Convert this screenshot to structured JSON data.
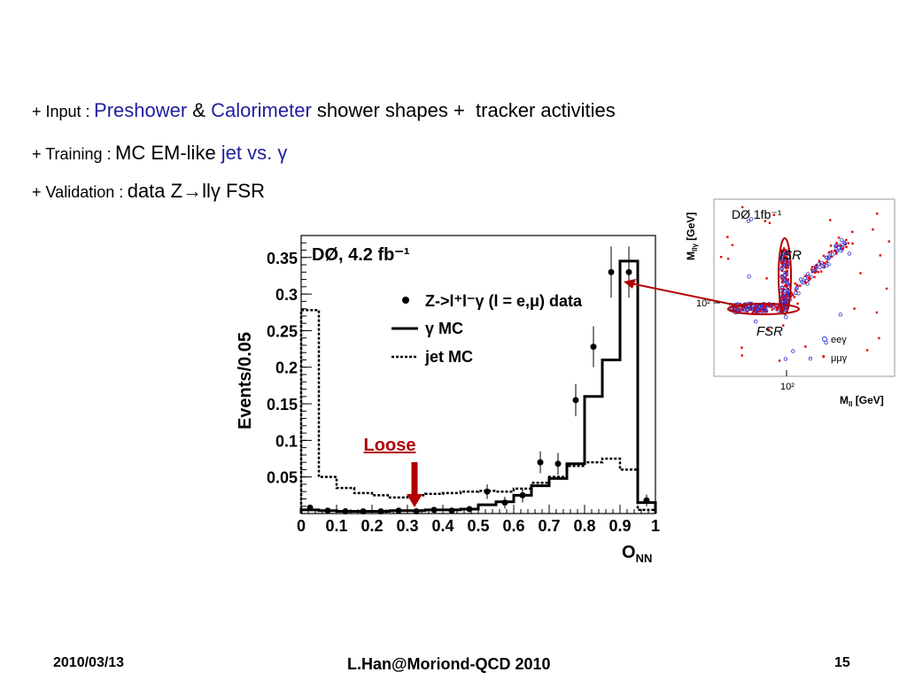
{
  "bullets": [
    {
      "prefix": "+ Input :",
      "parts": [
        {
          "text": "Preshower",
          "color": "blue"
        },
        {
          "text": " & ",
          "color": "black"
        },
        {
          "text": "Calorimeter",
          "color": "blue"
        },
        {
          "text": " shower shapes +  tracker activities",
          "color": "black"
        }
      ]
    },
    {
      "prefix": "+ Training :",
      "parts": [
        {
          "text": "MC EM-like ",
          "color": "black"
        },
        {
          "text": "jet vs. ",
          "color": "blue"
        },
        {
          "text": "γ",
          "color": "blue"
        }
      ]
    },
    {
      "prefix": "+ Validation :",
      "parts": [
        {
          "text": "data Z→llγ FSR",
          "color": "black"
        }
      ]
    }
  ],
  "footer": {
    "date": "2010/03/13",
    "author": "L.Han@Moriond-QCD 2010",
    "page": "15"
  },
  "colors": {
    "blue_text": "#1f1f9e",
    "arrow": "#b00000",
    "ee_marker": "#3333cc",
    "mumu_marker": "#e00000"
  },
  "chart_data": [
    {
      "type": "histogram",
      "title": "DØ, 4.2 fb⁻¹",
      "xlabel": "O_NN",
      "ylabel": "Events/0.05",
      "xlim": [
        0,
        1
      ],
      "ylim": [
        0,
        0.38
      ],
      "xticks": [
        "0",
        "0.1",
        "0.2",
        "0.3",
        "0.4",
        "0.5",
        "0.6",
        "0.7",
        "0.8",
        "0.9",
        "1"
      ],
      "yticks": [
        "0.05",
        "0.1",
        "0.15",
        "0.2",
        "0.25",
        "0.3",
        "0.35"
      ],
      "legend": {
        "placement": "top-right",
        "entries": [
          {
            "label": "Z->l⁺l⁻γ (l = e,μ) data",
            "style": "points"
          },
          {
            "label": "γ MC",
            "style": "solid"
          },
          {
            "label": "jet MC",
            "style": "dashed"
          }
        ]
      },
      "bin_edges": [
        0,
        0.05,
        0.1,
        0.15,
        0.2,
        0.25,
        0.3,
        0.35,
        0.4,
        0.45,
        0.5,
        0.55,
        0.6,
        0.65,
        0.7,
        0.75,
        0.8,
        0.85,
        0.9,
        0.95,
        1.0
      ],
      "series": [
        {
          "name": "γ MC",
          "style": "solid",
          "values": [
            0.005,
            0.004,
            0.003,
            0.003,
            0.003,
            0.004,
            0.004,
            0.005,
            0.005,
            0.006,
            0.012,
            0.016,
            0.025,
            0.038,
            0.048,
            0.068,
            0.16,
            0.21,
            0.345,
            0.015
          ]
        },
        {
          "name": "jet MC",
          "style": "dashed",
          "values": [
            0.278,
            0.05,
            0.035,
            0.028,
            0.025,
            0.022,
            0.025,
            0.027,
            0.028,
            0.03,
            0.031,
            0.03,
            0.034,
            0.042,
            0.05,
            0.065,
            0.07,
            0.075,
            0.06,
            0.005
          ]
        },
        {
          "name": "Z->l⁺l⁻γ (l = e,μ) data",
          "style": "points",
          "x": [
            0.025,
            0.075,
            0.125,
            0.175,
            0.225,
            0.275,
            0.325,
            0.375,
            0.425,
            0.475,
            0.525,
            0.575,
            0.625,
            0.675,
            0.725,
            0.775,
            0.825,
            0.875,
            0.925,
            0.975
          ],
          "values": [
            0.008,
            0.004,
            0.003,
            0.003,
            0.003,
            0.004,
            0.003,
            0.005,
            0.004,
            0.006,
            0.03,
            0.015,
            0.025,
            0.07,
            0.068,
            0.155,
            0.228,
            0.33,
            0.33,
            0.018
          ],
          "errors": [
            0.004,
            0.003,
            0.002,
            0.002,
            0.002,
            0.002,
            0.002,
            0.003,
            0.003,
            0.003,
            0.01,
            0.008,
            0.01,
            0.015,
            0.015,
            0.022,
            0.028,
            0.035,
            0.035,
            0.008
          ]
        }
      ],
      "annotation": {
        "text": "Loose",
        "x": 0.32
      }
    },
    {
      "type": "scatter",
      "title": "DØ 1fb⁻¹",
      "xlabel": "M_ll [GeV]",
      "ylabel": "M_llγ [GeV]",
      "xtick": "10²",
      "ytick": "10²",
      "annotations": [
        "ISR",
        "FSR"
      ],
      "legend": {
        "placement": "bottom-right",
        "entries": [
          {
            "label": "eeγ",
            "marker": "open-circle"
          },
          {
            "label": "μμγ",
            "marker": "star"
          }
        ]
      }
    }
  ]
}
